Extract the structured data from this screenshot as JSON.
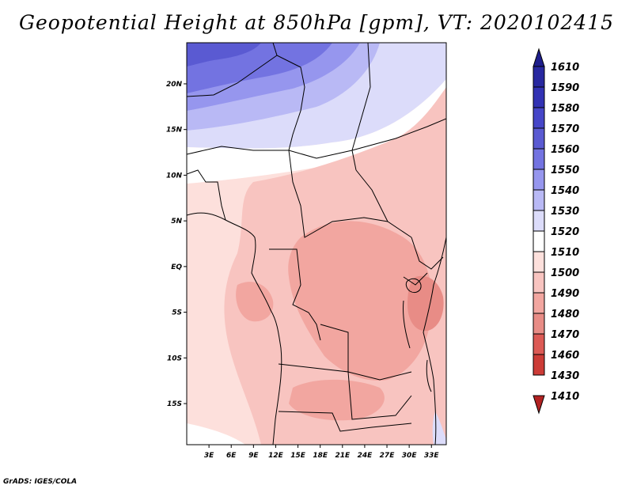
{
  "title": "Geopotential Height at 850hPa [gpm], VT: 2020102415",
  "credit": "GrADS: IGES/COLA",
  "map": {
    "lon_range": [
      0,
      35
    ],
    "lat_range": [
      -19.5,
      24.5
    ],
    "lon_ticks": [
      {
        "value": 3,
        "label": "3E"
      },
      {
        "value": 6,
        "label": "6E"
      },
      {
        "value": 9,
        "label": "9E"
      },
      {
        "value": 12,
        "label": "12E"
      },
      {
        "value": 15,
        "label": "15E"
      },
      {
        "value": 18,
        "label": "18E"
      },
      {
        "value": 21,
        "label": "21E"
      },
      {
        "value": 24,
        "label": "24E"
      },
      {
        "value": 27,
        "label": "27E"
      },
      {
        "value": 30,
        "label": "30E"
      },
      {
        "value": 33,
        "label": "33E"
      }
    ],
    "lat_ticks": [
      {
        "value": 20,
        "label": "20N"
      },
      {
        "value": 15,
        "label": "15N"
      },
      {
        "value": 10,
        "label": "10N"
      },
      {
        "value": 5,
        "label": "5N"
      },
      {
        "value": 0,
        "label": "EQ"
      },
      {
        "value": -5,
        "label": "5S"
      },
      {
        "value": -10,
        "label": "10S"
      },
      {
        "value": -15,
        "label": "15S"
      }
    ]
  },
  "legend": {
    "levels": [
      {
        "label": "1610",
        "color": "#1e1e8c"
      },
      {
        "label": "1590",
        "color": "#2828a0"
      },
      {
        "label": "1580",
        "color": "#3232b4"
      },
      {
        "label": "1570",
        "color": "#4646c8"
      },
      {
        "label": "1560",
        "color": "#5a5ad2"
      },
      {
        "label": "1550",
        "color": "#7373e1"
      },
      {
        "label": "1540",
        "color": "#9696ee"
      },
      {
        "label": "1530",
        "color": "#b9b9f5"
      },
      {
        "label": "1520",
        "color": "#dcdcfa"
      },
      {
        "label": "1510",
        "color": "#ffffff"
      },
      {
        "label": "1500",
        "color": "#fde0dc"
      },
      {
        "label": "1490",
        "color": "#f8c4c0"
      },
      {
        "label": "1480",
        "color": "#f2a6a0"
      },
      {
        "label": "1470",
        "color": "#e88c86"
      },
      {
        "label": "1460",
        "color": "#dc5a55"
      },
      {
        "label": "1430",
        "color": "#cc3c37"
      },
      {
        "label": "1410",
        "color": "#b22222"
      }
    ]
  }
}
